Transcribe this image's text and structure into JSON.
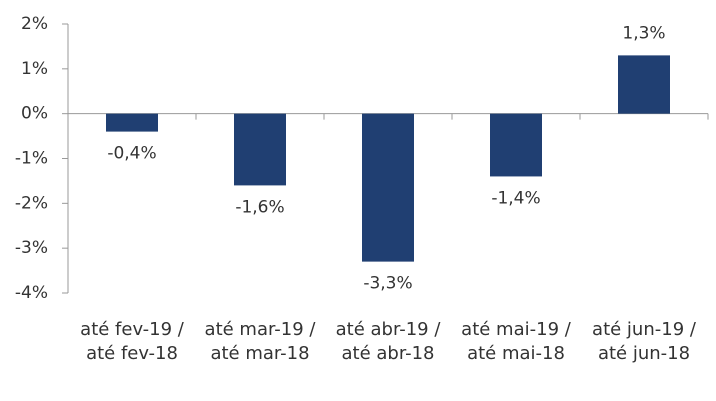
{
  "chart_data": {
    "type": "bar",
    "categories": [
      "até fev-19 / até fev-18",
      "até mar-19 / até mar-18",
      "até abr-19 / até abr-18",
      "até mai-19 / até mai-18",
      "até jun-19 / até jun-18"
    ],
    "values": [
      -0.4,
      -1.6,
      -3.3,
      -1.4,
      1.3
    ],
    "value_labels": [
      "-0,4%",
      "-1,6%",
      "-3,3%",
      "-1,4%",
      "1,3%"
    ],
    "color": "#203f72",
    "ylim": [
      -4,
      2
    ],
    "yticks": [
      {
        "value": -4,
        "label": "-4%"
      },
      {
        "value": -3,
        "label": "-3%"
      },
      {
        "value": -2,
        "label": "-2%"
      },
      {
        "value": -1,
        "label": "-1%"
      },
      {
        "value": 0,
        "label": "0%"
      },
      {
        "value": 1,
        "label": "1%"
      },
      {
        "value": 2,
        "label": "2%"
      }
    ],
    "grid": false
  }
}
